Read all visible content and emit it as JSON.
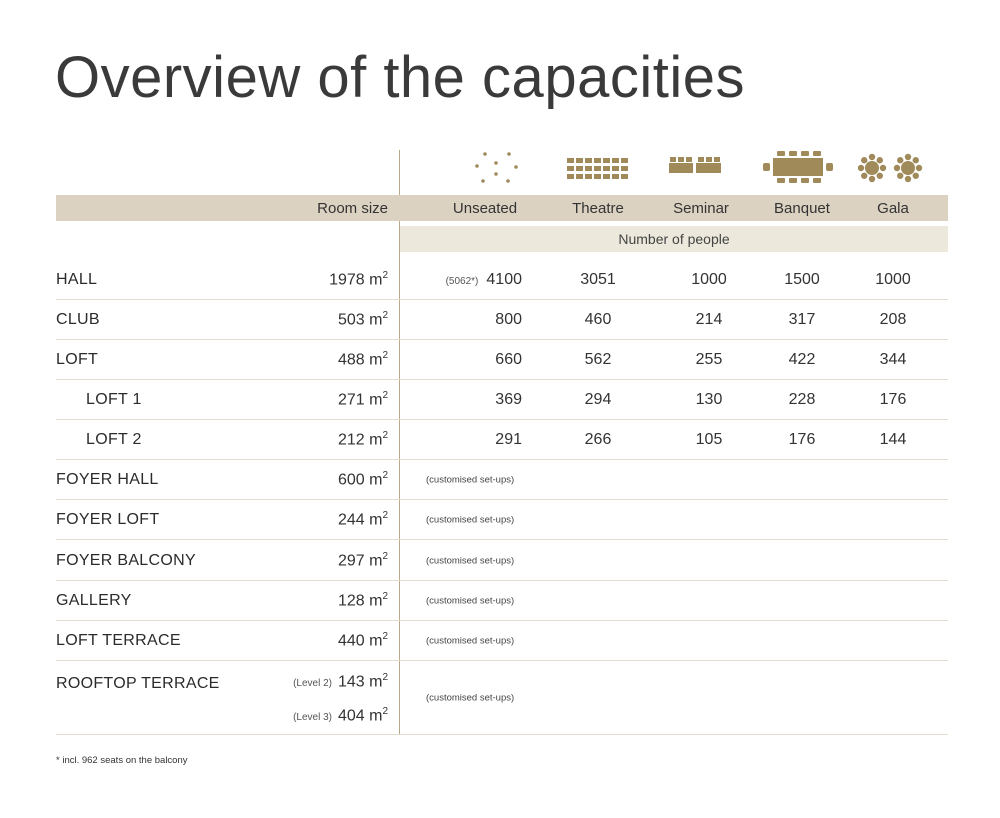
{
  "title": "Overview of the capacities",
  "accent_color": "#a08a5a",
  "header": {
    "room_size": "Room size",
    "columns": [
      {
        "label": "Unseated",
        "icon": "unseated-dots-icon"
      },
      {
        "label": "Theatre",
        "icon": "theatre-rows-icon"
      },
      {
        "label": "Seminar",
        "icon": "seminar-tables-icon"
      },
      {
        "label": "Banquet",
        "icon": "banquet-table-icon"
      },
      {
        "label": "Gala",
        "icon": "gala-round-tables-icon"
      }
    ],
    "number_of_people": "Number of people"
  },
  "rows": [
    {
      "name": "HALL",
      "size": "1978 m",
      "note": "(5062*)",
      "values": [
        "4100",
        "3051",
        "1000",
        "1500",
        "1000"
      ]
    },
    {
      "name": "CLUB",
      "size": "503 m",
      "values": [
        "800",
        "460",
        "214",
        "317",
        "208"
      ]
    },
    {
      "name": "LOFT",
      "size": "488 m",
      "values": [
        "660",
        "562",
        "255",
        "422",
        "344"
      ]
    },
    {
      "name": "LOFT 1",
      "size": "271 m",
      "indent": true,
      "values": [
        "369",
        "294",
        "130",
        "228",
        "176"
      ]
    },
    {
      "name": "LOFT 2",
      "size": "212 m",
      "indent": true,
      "values": [
        "291",
        "266",
        "105",
        "176",
        "144"
      ]
    },
    {
      "name": "FOYER HALL",
      "size": "600 m",
      "custom": "(customised set-ups)"
    },
    {
      "name": "FOYER LOFT",
      "size": "244 m",
      "custom": "(customised set-ups)"
    },
    {
      "name": "FOYER BALCONY",
      "size": "297 m",
      "custom": "(customised set-ups)"
    },
    {
      "name": "GALLERY",
      "size": "128 m",
      "custom": "(customised set-ups)"
    },
    {
      "name": "LOFT TERRACE",
      "size": "440 m",
      "custom": "(customised set-ups)"
    },
    {
      "name": "ROOFTOP TERRACE",
      "levels": [
        {
          "label": "(Level 2)",
          "size": "143 m"
        },
        {
          "label": "(Level 3)",
          "size": "404 m"
        }
      ],
      "custom": "(customised set-ups)"
    }
  ],
  "unit_superscript": "2",
  "footnote": "* incl. 962 seats on the balcony"
}
